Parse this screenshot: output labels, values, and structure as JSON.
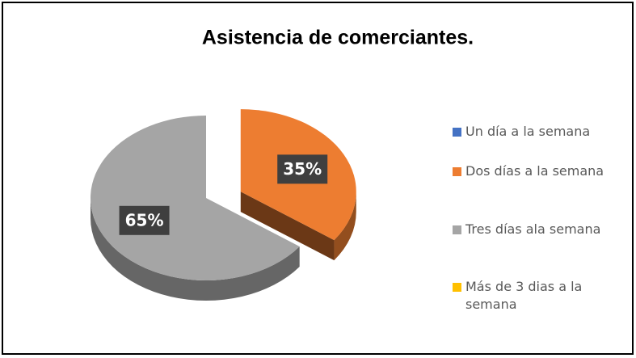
{
  "chart_data": {
    "type": "pie",
    "title": "Asistencia de comerciantes.",
    "categories": [
      "Un día a la semana",
      "Dos días a la semana",
      "Tres días ala semana",
      "Más de 3 dias a la semana"
    ],
    "values": [
      0,
      35,
      65,
      0
    ],
    "value_labels": [
      null,
      "35%",
      "65%",
      null
    ],
    "colors": [
      "#4472c4",
      "#ed7d31",
      "#a5a5a5",
      "#ffc000"
    ],
    "legend": "right"
  }
}
